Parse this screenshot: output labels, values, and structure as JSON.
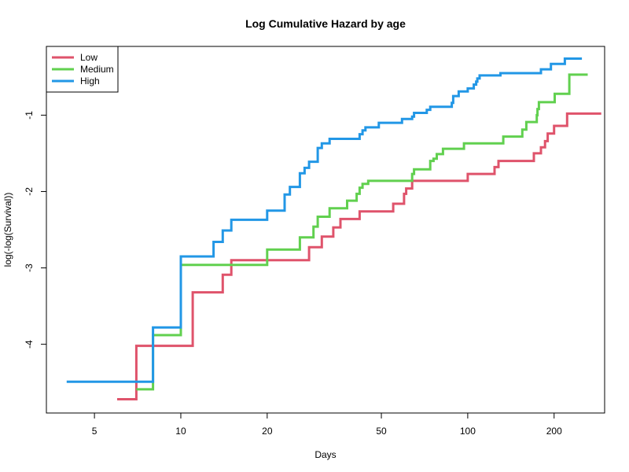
{
  "chart_data": {
    "type": "line",
    "title": "Log Cumulative Hazard by age",
    "xlabel": "Days",
    "ylabel": "log(-log(Survival))",
    "x_scale": "log",
    "xlim": [
      3.4,
      300
    ],
    "ylim": [
      -4.9,
      -0.1
    ],
    "x_ticks": [
      5,
      10,
      20,
      50,
      100,
      200
    ],
    "y_ticks": [
      -4,
      -3,
      -2,
      -1
    ],
    "grid": false,
    "legend_position": "top-left",
    "series": [
      {
        "name": "Low",
        "color": "#DF536B",
        "step": true,
        "x": [
          6,
          7,
          11,
          14,
          15,
          28,
          31,
          34,
          36,
          38,
          42,
          55,
          60,
          61,
          64,
          100,
          124,
          128,
          170,
          180,
          186,
          190,
          200,
          222,
          292
        ],
        "y": [
          -4.72,
          -4.02,
          -3.32,
          -3.09,
          -2.9,
          -2.73,
          -2.59,
          -2.47,
          -2.36,
          -2.36,
          -2.26,
          -2.16,
          -2.03,
          -1.96,
          -1.86,
          -1.77,
          -1.68,
          -1.6,
          -1.5,
          -1.42,
          -1.34,
          -1.24,
          -1.14,
          -0.98,
          -0.98
        ]
      },
      {
        "name": "Medium",
        "color": "#61D04F",
        "step": true,
        "x": [
          7,
          8,
          10,
          20,
          26,
          29,
          30,
          33,
          38,
          41,
          42,
          43,
          45,
          64,
          65,
          68,
          74,
          76,
          78,
          82,
          97,
          133,
          155,
          160,
          174,
          175,
          177,
          201,
          226,
          262
        ],
        "y": [
          -4.59,
          -3.88,
          -2.96,
          -2.76,
          -2.6,
          -2.46,
          -2.33,
          -2.22,
          -2.12,
          -2.03,
          -1.95,
          -1.9,
          -1.86,
          -1.77,
          -1.71,
          -1.71,
          -1.6,
          -1.57,
          -1.51,
          -1.44,
          -1.37,
          -1.28,
          -1.19,
          -1.09,
          -1.0,
          -0.92,
          -0.83,
          -0.72,
          -0.47,
          -0.47
        ]
      },
      {
        "name": "High",
        "color": "#2297E6",
        "step": true,
        "x": [
          4,
          8,
          10,
          13,
          14,
          15,
          20,
          23,
          24,
          26,
          27,
          28,
          30,
          31,
          33,
          42,
          43,
          44,
          49,
          59,
          64,
          65,
          72,
          74,
          88,
          89,
          93,
          100,
          105,
          107,
          108,
          110,
          130,
          180,
          195,
          218,
          250
        ],
        "y": [
          -4.49,
          -3.78,
          -2.85,
          -2.66,
          -2.51,
          -2.37,
          -2.25,
          -2.04,
          -1.94,
          -1.76,
          -1.69,
          -1.61,
          -1.43,
          -1.37,
          -1.31,
          -1.25,
          -1.2,
          -1.16,
          -1.1,
          -1.05,
          -1.02,
          -0.97,
          -0.93,
          -0.89,
          -0.84,
          -0.75,
          -0.69,
          -0.65,
          -0.6,
          -0.56,
          -0.52,
          -0.48,
          -0.45,
          -0.4,
          -0.33,
          -0.26,
          -0.26
        ]
      }
    ]
  }
}
